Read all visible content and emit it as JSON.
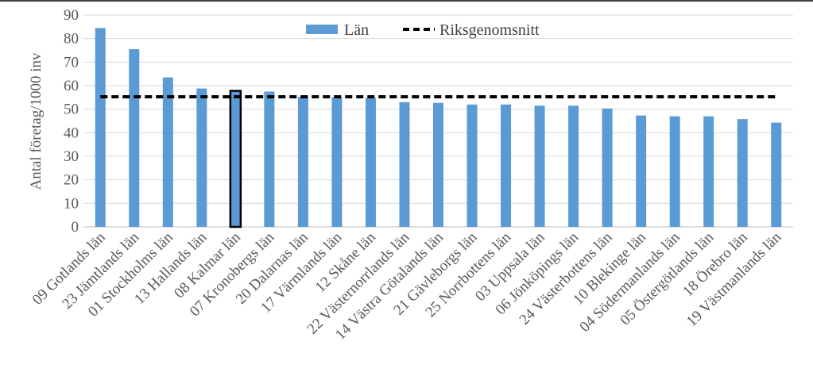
{
  "chart_data": {
    "type": "bar",
    "title": "",
    "xlabel": "",
    "ylabel": "Antal företag/1000 inv",
    "ylim": [
      0,
      90
    ],
    "yticks": [
      0,
      10,
      20,
      30,
      40,
      50,
      60,
      70,
      80,
      90
    ],
    "grid": true,
    "legend_position": "top",
    "categories": [
      "09 Gotlands län",
      "23 Jämtlands län",
      "01 Stockholms län",
      "13 Hallands län",
      "08 Kalmar län",
      "07 Kronobergs län",
      "20 Dalarnas län",
      "17 Värmlands län",
      "12 Skåne län",
      "22 Västernorrlands län",
      "14 Västra Götalands län",
      "21 Gävleborgs län",
      "25 Norrbottens län",
      "03 Uppsala län",
      "06 Jönköpings län",
      "24 Västerbottens län",
      "10 Blekinge län",
      "04 Södermanlands län",
      "05 Östergötlands län",
      "18 Örebro län",
      "19 Västmanlands län"
    ],
    "series": [
      {
        "name": "Län",
        "type": "bar",
        "color": "#5b9bd5",
        "values": [
          84.5,
          75.5,
          63.5,
          58.8,
          57.8,
          57.5,
          55.3,
          55.0,
          54.8,
          53.0,
          52.7,
          52.0,
          52.0,
          51.5,
          51.5,
          50.3,
          47.3,
          47.0,
          47.0,
          45.8,
          44.3
        ]
      },
      {
        "name": "Riksgenomsnitt",
        "type": "line",
        "style": "dashed",
        "color": "#000000",
        "value": 55.3
      }
    ],
    "highlighted_category": "08 Kalmar län",
    "highlight_color": "#000000"
  }
}
